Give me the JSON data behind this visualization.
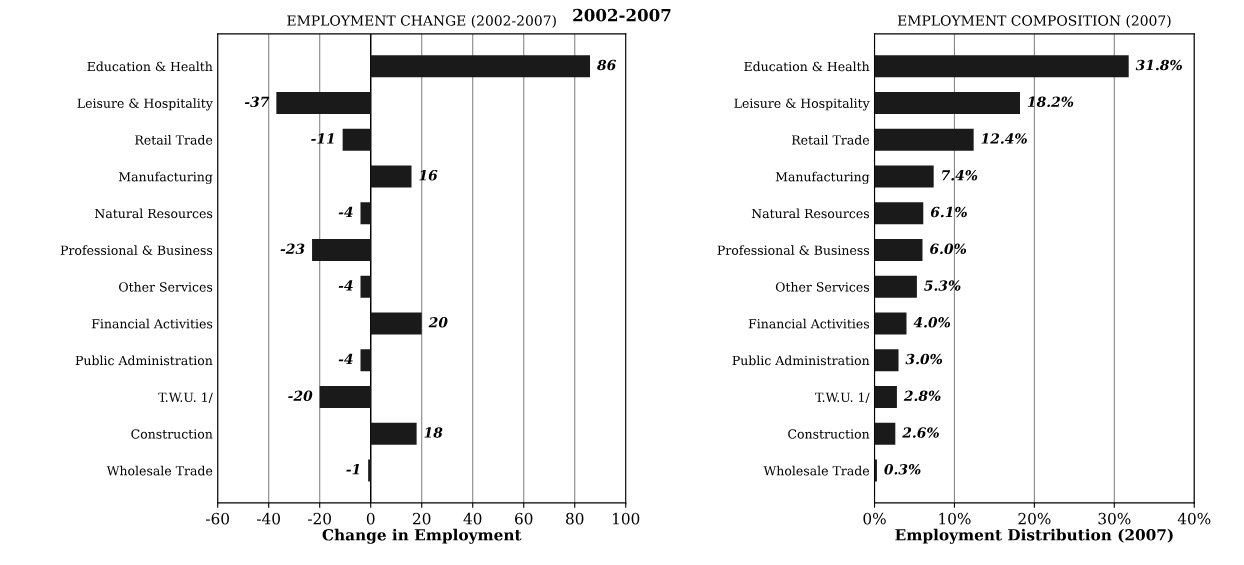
{
  "chart_data": [
    {
      "type": "bar",
      "orientation": "horizontal",
      "title": "EMPLOYMENT CHANGE (2002-2007)",
      "xlabel": "Change in Employment",
      "annotations": [
        "2002-2007"
      ],
      "categories": [
        "Education & Health",
        "Leisure & Hospitality",
        "Retail Trade",
        "Manufacturing",
        "Natural Resources",
        "Professional & Business",
        "Other Services",
        "Financial Activities",
        "Public Administration",
        "T.W.U. 1/",
        "Construction",
        "Wholesale Trade"
      ],
      "values": [
        86,
        -37,
        -11,
        16,
        -4,
        -23,
        -4,
        20,
        -4,
        -20,
        18,
        -1
      ],
      "color": "#1a1a1a",
      "data_labels": true,
      "xlim": [
        -60,
        100
      ],
      "xticks": [
        -60,
        -40,
        -20,
        0,
        20,
        40,
        60,
        80,
        100
      ],
      "grid": "x"
    },
    {
      "type": "bar",
      "orientation": "horizontal",
      "title": "EMPLOYMENT COMPOSITION (2007)",
      "xlabel": "Employment Distribution (2007)",
      "categories": [
        "Education & Health",
        "Leisure & Hospitality",
        "Retail Trade",
        "Manufacturing",
        "Natural Resources",
        "Professional & Business",
        "Other Services",
        "Financial Activities",
        "Public Administration",
        "T.W.U. 1/",
        "Construction",
        "Wholesale Trade"
      ],
      "values": [
        31.8,
        18.2,
        12.4,
        7.4,
        6.1,
        6.0,
        5.3,
        4.0,
        3.0,
        2.8,
        2.6,
        0.3
      ],
      "value_labels": [
        "31.8%",
        "18.2%",
        "12.4%",
        "7.4%",
        "6.1%",
        "6.0%",
        "5.3%",
        "4.0%",
        "3.0%",
        "2.8%",
        "2.6%",
        "0.3%"
      ],
      "color": "#1a1a1a",
      "xlim": [
        0,
        40
      ],
      "xticks": [
        {
          "value": 0,
          "label": "0%"
        },
        {
          "value": 10,
          "label": "10%"
        },
        {
          "value": 20,
          "label": "20%"
        },
        {
          "value": 30,
          "label": "30%"
        },
        {
          "value": 40,
          "label": "40%"
        }
      ],
      "grid": "x"
    }
  ]
}
